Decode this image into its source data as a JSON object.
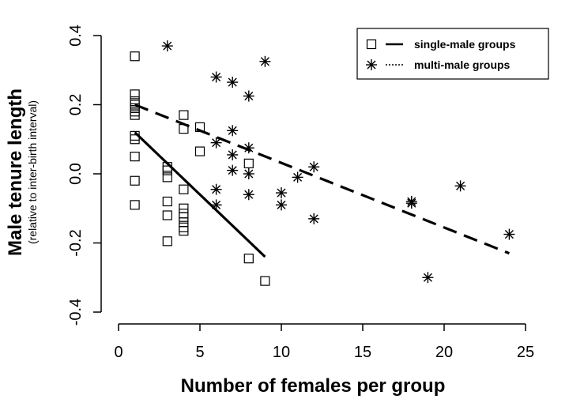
{
  "chart_data": {
    "type": "scatter",
    "title": "",
    "xlabel": "Number of females per group",
    "ylabel": "Male tenure length",
    "ylabel_sub": "(relative to inter-birth interval)",
    "xlim": [
      0,
      25
    ],
    "ylim": [
      -0.4,
      0.4
    ],
    "xticks": [
      0,
      5,
      10,
      15,
      20,
      25
    ],
    "yticks": [
      -0.4,
      -0.2,
      0.0,
      0.2,
      0.4
    ],
    "xtick_labels": [
      "0",
      "5",
      "10",
      "15",
      "20",
      "25"
    ],
    "ytick_labels": [
      "-0.4",
      "-0.2",
      "0.0",
      "0.2",
      "0.4"
    ],
    "grid": false,
    "legend_position": "top-right",
    "series": [
      {
        "name": "single-male groups",
        "marker": "square",
        "line": "solid",
        "points": [
          [
            1,
            0.34
          ],
          [
            1,
            0.23
          ],
          [
            1,
            0.21
          ],
          [
            1,
            0.2
          ],
          [
            1,
            0.19
          ],
          [
            1,
            0.18
          ],
          [
            1,
            0.17
          ],
          [
            1,
            0.11
          ],
          [
            1,
            0.1
          ],
          [
            1,
            0.05
          ],
          [
            1,
            -0.02
          ],
          [
            1,
            -0.09
          ],
          [
            3,
            0.02
          ],
          [
            3,
            0.01
          ],
          [
            3,
            -0.01
          ],
          [
            3,
            -0.08
          ],
          [
            3,
            -0.12
          ],
          [
            3,
            -0.195
          ],
          [
            4,
            0.17
          ],
          [
            4,
            0.13
          ],
          [
            4,
            -0.045
          ],
          [
            4,
            -0.1
          ],
          [
            4,
            -0.115
          ],
          [
            4,
            -0.125
          ],
          [
            4,
            -0.14
          ],
          [
            4,
            -0.155
          ],
          [
            4,
            -0.165
          ],
          [
            5,
            0.135
          ],
          [
            5,
            0.065
          ],
          [
            8,
            0.03
          ],
          [
            8,
            -0.245
          ],
          [
            9,
            -0.31
          ]
        ],
        "fit_line": [
          [
            1,
            0.12
          ],
          [
            9,
            -0.24
          ]
        ]
      },
      {
        "name": "multi-male groups",
        "marker": "asterisk",
        "line": "dashed",
        "points": [
          [
            3,
            0.37
          ],
          [
            6,
            0.28
          ],
          [
            6,
            0.09
          ],
          [
            6,
            -0.045
          ],
          [
            6,
            -0.09
          ],
          [
            7,
            0.265
          ],
          [
            7,
            0.125
          ],
          [
            7,
            0.055
          ],
          [
            7,
            0.01
          ],
          [
            8,
            0.225
          ],
          [
            8,
            0.075
          ],
          [
            8,
            0.0
          ],
          [
            8,
            -0.06
          ],
          [
            9,
            0.325
          ],
          [
            10,
            -0.055
          ],
          [
            10,
            -0.09
          ],
          [
            11,
            -0.01
          ],
          [
            12,
            0.02
          ],
          [
            12,
            -0.13
          ],
          [
            18,
            -0.08
          ],
          [
            18,
            -0.085
          ],
          [
            19,
            -0.3
          ],
          [
            21,
            -0.035
          ],
          [
            24,
            -0.175
          ]
        ],
        "fit_line": [
          [
            1,
            0.2
          ],
          [
            24,
            -0.23
          ]
        ]
      }
    ]
  }
}
